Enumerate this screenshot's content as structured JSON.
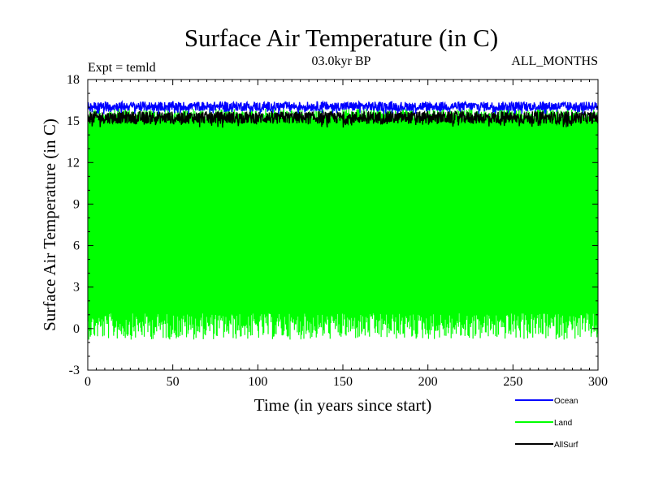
{
  "chart_data": {
    "type": "line",
    "title": "Surface Air Temperature (in C)",
    "subtitle": "03.0kyr BP",
    "expt_label": "Expt = temld",
    "months_label": "ALL_MONTHS",
    "xlabel": "Time (in years since start)",
    "ylabel": "Surface Air Temperature (in C)",
    "xlim": [
      0,
      300
    ],
    "ylim": [
      -3,
      18
    ],
    "xticks": [
      0,
      50,
      100,
      150,
      200,
      250,
      300
    ],
    "yticks": [
      -3,
      0,
      3,
      6,
      9,
      12,
      15,
      18
    ],
    "grid": false,
    "legend_position": "bottom-right",
    "series": [
      {
        "name": "Ocean",
        "color": "#0000ff",
        "approx_mean": 15.9,
        "approx_range": [
          15.5,
          16.4
        ],
        "description": "monthly values, narrow band"
      },
      {
        "name": "Land",
        "color": "#00ff00",
        "approx_range": [
          -0.5,
          15.9
        ],
        "approx_mean": 8.0,
        "description": "monthly values with large seasonal cycle, filled band"
      },
      {
        "name": "AllSurf",
        "color": "#000000",
        "approx_range": [
          14.5,
          15.7
        ],
        "approx_mean": 15.2,
        "description": "monthly values"
      }
    ]
  }
}
